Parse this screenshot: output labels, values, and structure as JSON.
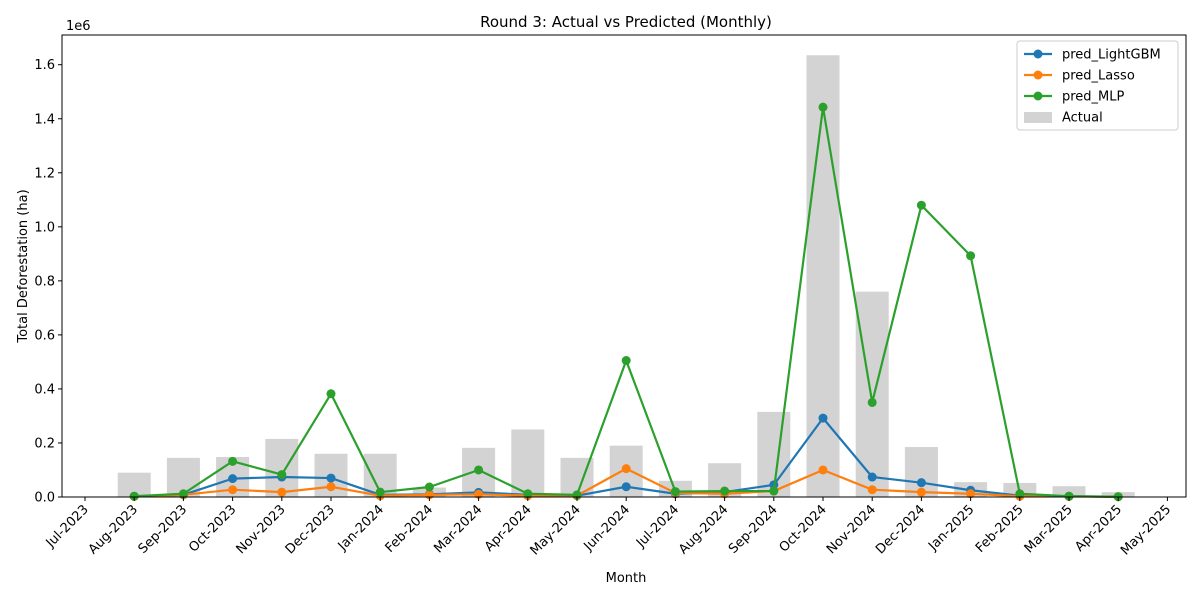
{
  "chart_data": {
    "type": "bar+line",
    "title": "Round 3: Actual vs Predicted (Monthly)",
    "xlabel": "Month",
    "ylabel": "Total Deforestation (ha)",
    "y_scale_label": "1e6",
    "ylim": [
      0,
      1710000
    ],
    "y_ticks": [
      0,
      200000,
      400000,
      600000,
      800000,
      1000000,
      1200000,
      1400000,
      1600000
    ],
    "y_tick_labels": [
      "0.0",
      "0.2",
      "0.4",
      "0.6",
      "0.8",
      "1.0",
      "1.2",
      "1.4",
      "1.6"
    ],
    "x_tick_labels": [
      "Jul-2023",
      "Aug-2023",
      "Sep-2023",
      "Oct-2023",
      "Nov-2023",
      "Dec-2023",
      "Jan-2024",
      "Feb-2024",
      "Mar-2024",
      "Apr-2024",
      "May-2024",
      "Jun-2024",
      "Jul-2024",
      "Aug-2024",
      "Sep-2024",
      "Oct-2024",
      "Nov-2024",
      "Dec-2024",
      "Jan-2025",
      "Feb-2025",
      "Mar-2025",
      "Apr-2025",
      "May-2025"
    ],
    "categories": [
      "Aug-2023",
      "Sep-2023",
      "Oct-2023",
      "Nov-2023",
      "Dec-2023",
      "Jan-2024",
      "Feb-2024",
      "Mar-2024",
      "Apr-2024",
      "May-2024",
      "Jun-2024",
      "Jul-2024",
      "Aug-2024",
      "Sep-2024",
      "Oct-2024",
      "Nov-2024",
      "Dec-2024",
      "Jan-2025",
      "Feb-2025",
      "Mar-2025",
      "Apr-2025"
    ],
    "bars": {
      "name": "Actual",
      "color": "#d3d3d3",
      "values": [
        90000,
        145000,
        148000,
        215000,
        160000,
        160000,
        35000,
        182000,
        250000,
        145000,
        190000,
        60000,
        125000,
        315000,
        1635000,
        760000,
        185000,
        55000,
        52000,
        40000,
        18000
      ]
    },
    "series": [
      {
        "name": "pred_LightGBM",
        "color": "#1f77b4",
        "values": [
          3000,
          8000,
          68000,
          74000,
          70000,
          8000,
          10000,
          17000,
          8000,
          5000,
          38000,
          12000,
          18000,
          45000,
          292000,
          74000,
          53000,
          25000,
          5000,
          3000,
          1000
        ]
      },
      {
        "name": "pred_Lasso",
        "color": "#ff7f0e",
        "values": [
          2000,
          8000,
          27000,
          18000,
          38000,
          5000,
          8000,
          10000,
          5000,
          5000,
          105000,
          15000,
          12000,
          22000,
          100000,
          27000,
          18000,
          12000,
          3000,
          2000,
          1000
        ]
      },
      {
        "name": "pred_MLP",
        "color": "#2ca02c",
        "values": [
          3000,
          12000,
          132000,
          83000,
          382000,
          18000,
          37000,
          100000,
          12000,
          8000,
          505000,
          20000,
          22000,
          22000,
          1443000,
          350000,
          1080000,
          893000,
          12000,
          3000,
          1000
        ]
      }
    ],
    "legend_position": "top-right",
    "grid": false
  }
}
